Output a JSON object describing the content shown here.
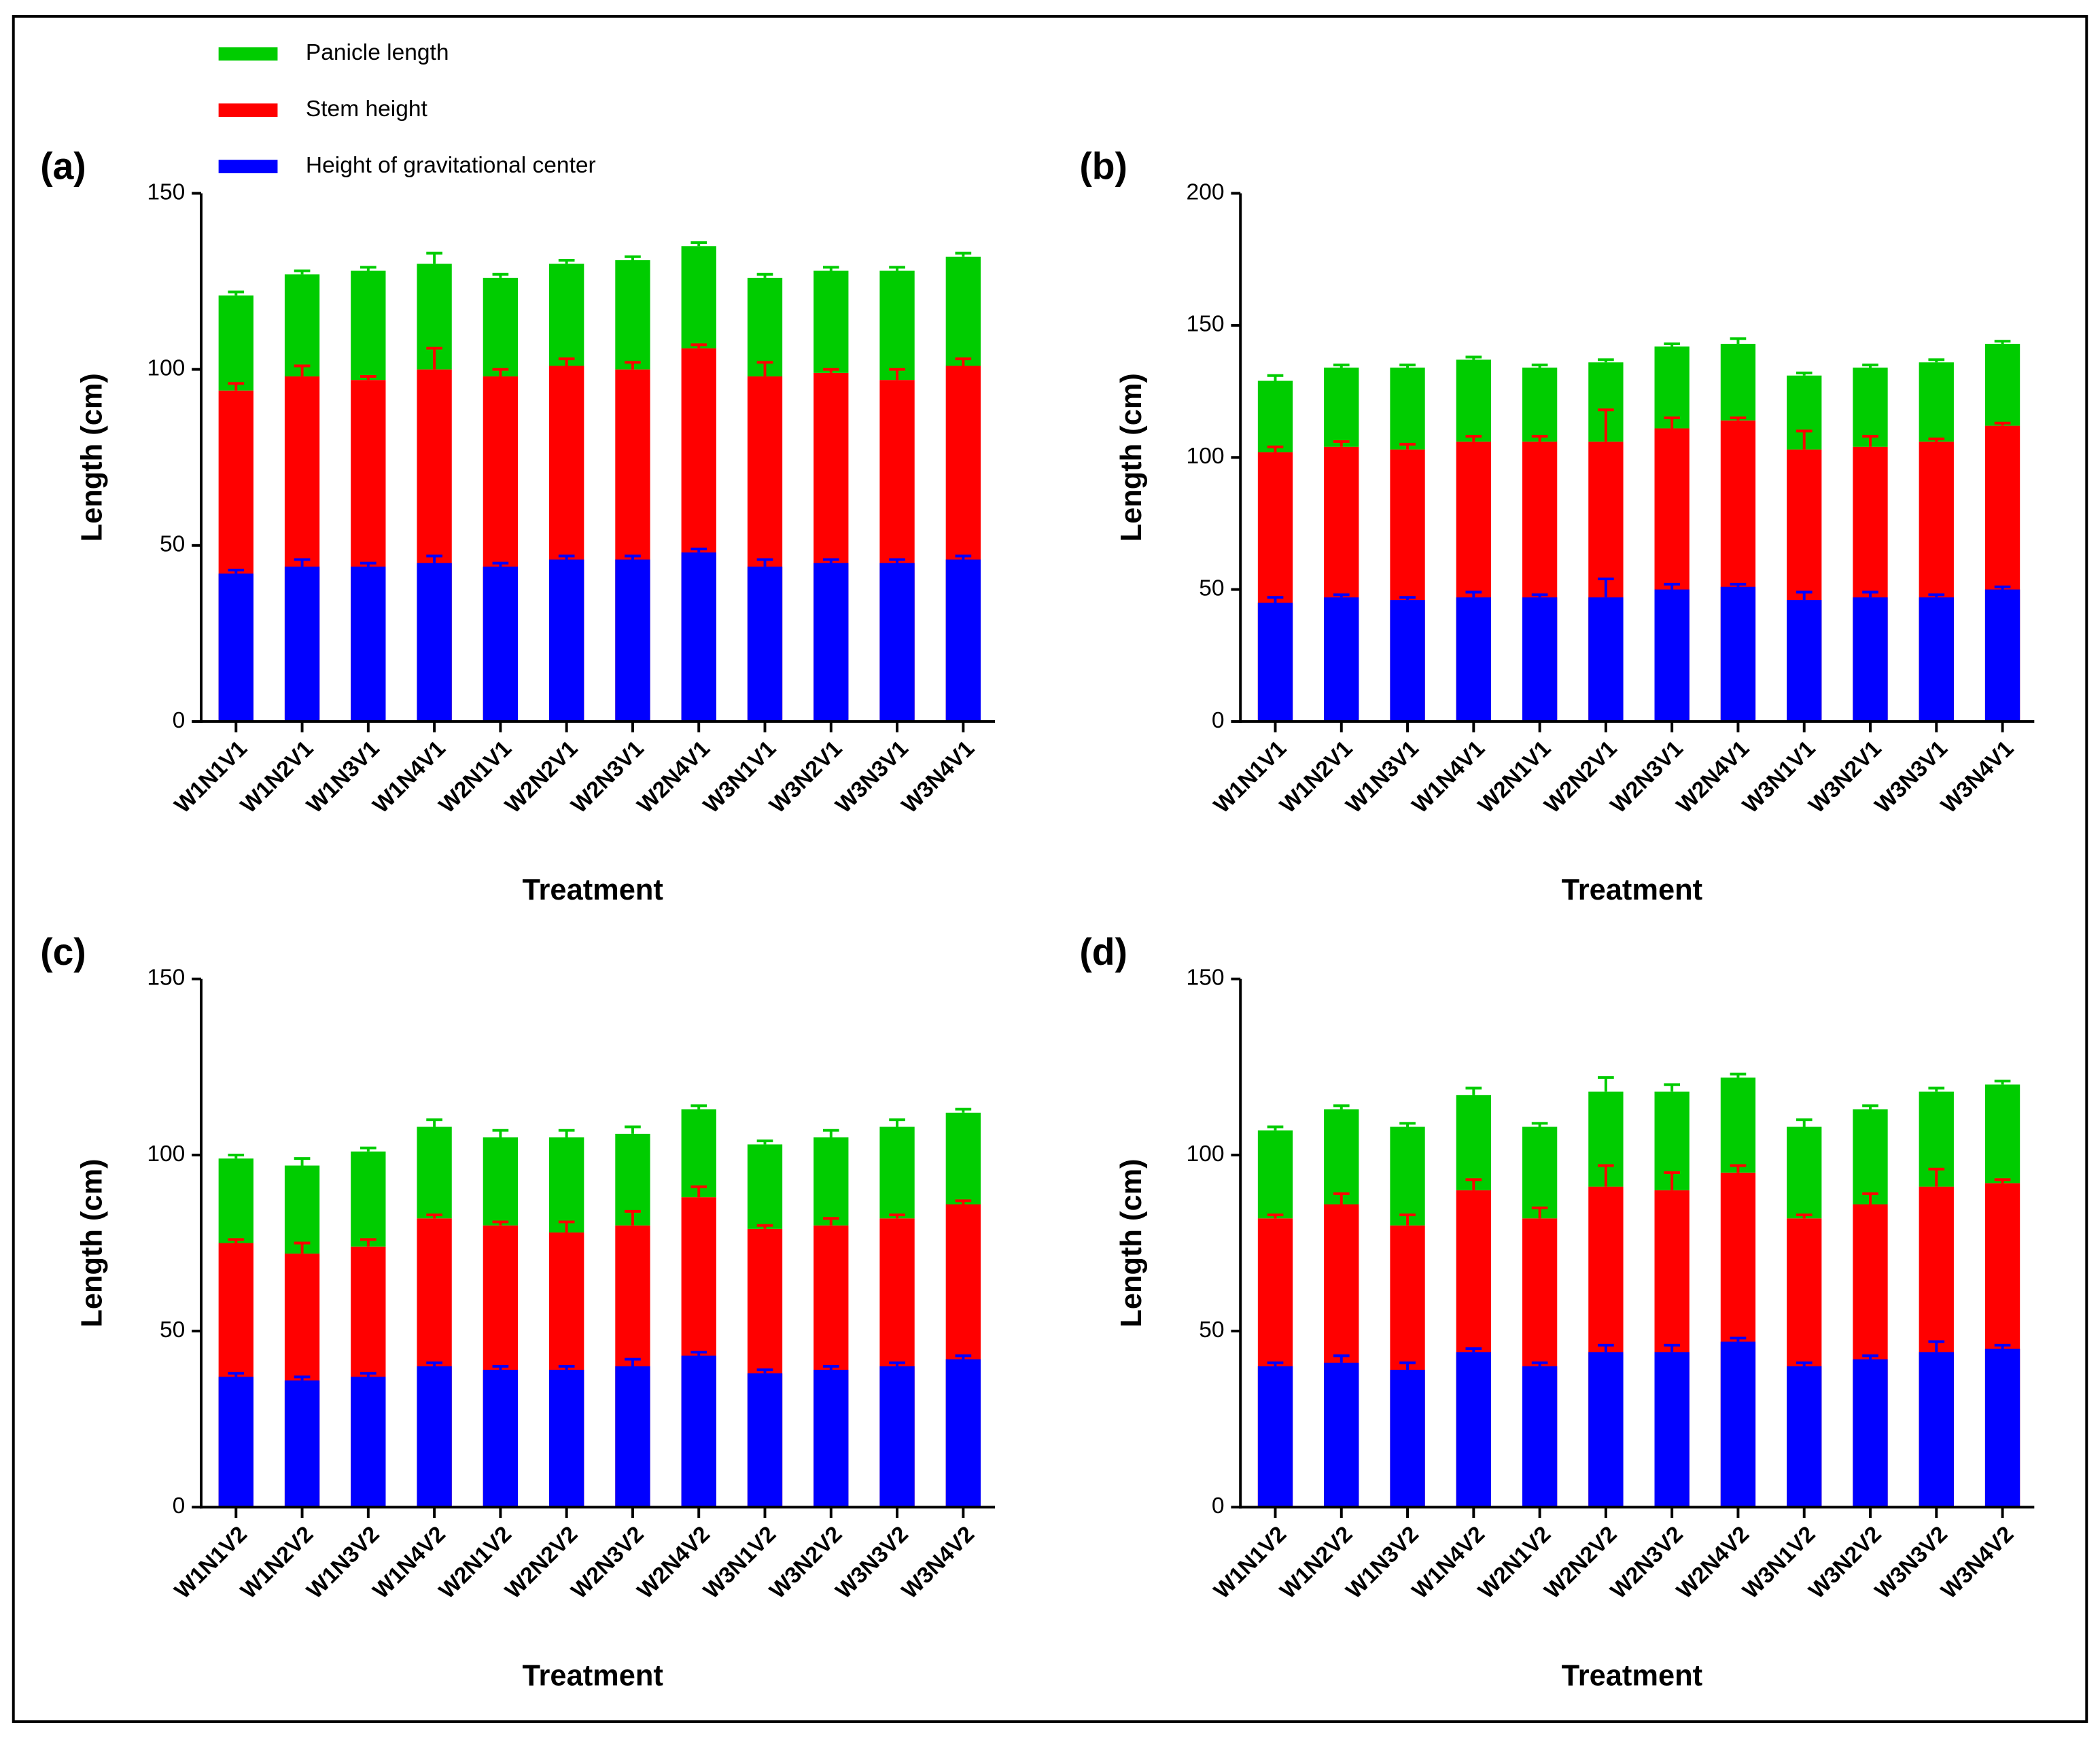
{
  "chart_data": [
    {
      "type": "bar",
      "label": "(a)",
      "ylabel": "Length (cm)",
      "xlabel": "Treatment",
      "categories": [
        "W1N1V1",
        "W1N2V1",
        "W1N3V1",
        "W1N4V1",
        "W2N1V1",
        "W2N2V1",
        "W2N3V1",
        "W2N4V1",
        "W3N1V1",
        "W3N2V1",
        "W3N3V1",
        "W3N4V1"
      ],
      "ylim": [
        0,
        150
      ],
      "yticks": [
        0,
        50,
        100,
        150
      ],
      "series": [
        {
          "name": "Height of gravitational center",
          "color": "#0000ff",
          "values": [
            42,
            44,
            44,
            45,
            44,
            46,
            46,
            48,
            44,
            45,
            45,
            46
          ],
          "errors": [
            1,
            2,
            1,
            2,
            1,
            1,
            1,
            1,
            2,
            1,
            1,
            1
          ]
        },
        {
          "name": "Stem height",
          "color": "#ff0000",
          "values": [
            94,
            98,
            97,
            100,
            98,
            101,
            100,
            106,
            98,
            99,
            97,
            101
          ],
          "errors": [
            2,
            3,
            1,
            6,
            2,
            2,
            2,
            1,
            4,
            1,
            3,
            2
          ]
        },
        {
          "name": "Panicle length",
          "color": "#00cc00",
          "values": [
            27,
            29,
            31,
            30,
            28,
            29,
            31,
            29,
            28,
            29,
            31,
            31
          ],
          "errors": [
            1,
            1,
            1,
            3,
            1,
            1,
            1,
            1,
            1,
            1,
            1,
            1
          ]
        }
      ]
    },
    {
      "type": "bar",
      "label": "(b)",
      "ylabel": "Length (cm)",
      "xlabel": "Treatment",
      "categories": [
        "W1N1V1",
        "W1N2V1",
        "W1N3V1",
        "W1N4V1",
        "W2N1V1",
        "W2N2V1",
        "W2N3V1",
        "W2N4V1",
        "W3N1V1",
        "W3N2V1",
        "W3N3V1",
        "W3N4V1"
      ],
      "ylim": [
        0,
        200
      ],
      "yticks": [
        0,
        50,
        100,
        150,
        200
      ],
      "series": [
        {
          "color": "#0000ff",
          "values": [
            45,
            47,
            46,
            47,
            47,
            47,
            50,
            51,
            46,
            47,
            47,
            50
          ],
          "errors": [
            2,
            1,
            1,
            2,
            1,
            7,
            2,
            1,
            3,
            2,
            1,
            1
          ]
        },
        {
          "color": "#ff0000",
          "values": [
            102,
            104,
            103,
            106,
            106,
            106,
            111,
            114,
            103,
            104,
            106,
            112
          ],
          "errors": [
            2,
            2,
            2,
            2,
            2,
            12,
            4,
            1,
            7,
            4,
            1,
            1
          ]
        },
        {
          "color": "#00cc00",
          "values": [
            27,
            30,
            31,
            31,
            28,
            30,
            31,
            29,
            28,
            30,
            30,
            31
          ],
          "errors": [
            2,
            1,
            1,
            1,
            1,
            1,
            1,
            2,
            1,
            1,
            1,
            1
          ]
        }
      ]
    },
    {
      "type": "bar",
      "label": "(c)",
      "ylabel": "Length (cm)",
      "xlabel": "Treatment",
      "categories": [
        "W1N1V2",
        "W1N2V2",
        "W1N3V2",
        "W1N4V2",
        "W2N1V2",
        "W2N2V2",
        "W2N3V2",
        "W2N4V2",
        "W3N1V2",
        "W3N2V2",
        "W3N3V2",
        "W3N4V2"
      ],
      "ylim": [
        0,
        150
      ],
      "yticks": [
        0,
        50,
        100,
        150
      ],
      "series": [
        {
          "color": "#0000ff",
          "values": [
            37,
            36,
            37,
            40,
            39,
            39,
            40,
            43,
            38,
            39,
            40,
            42
          ],
          "errors": [
            1,
            1,
            1,
            1,
            1,
            1,
            2,
            1,
            1,
            1,
            1,
            1
          ]
        },
        {
          "color": "#ff0000",
          "values": [
            75,
            72,
            74,
            82,
            80,
            78,
            80,
            88,
            79,
            80,
            82,
            86
          ],
          "errors": [
            1,
            3,
            2,
            1,
            1,
            3,
            4,
            3,
            1,
            2,
            1,
            1
          ]
        },
        {
          "color": "#00cc00",
          "values": [
            24,
            25,
            27,
            26,
            25,
            27,
            26,
            25,
            24,
            25,
            26,
            26
          ],
          "errors": [
            1,
            2,
            1,
            2,
            2,
            2,
            2,
            1,
            1,
            2,
            2,
            1
          ]
        }
      ]
    },
    {
      "type": "bar",
      "label": "(d)",
      "ylabel": "Length (cm)",
      "xlabel": "Treatment",
      "categories": [
        "W1N1V2",
        "W1N2V2",
        "W1N3V2",
        "W1N4V2",
        "W2N1V2",
        "W2N2V2",
        "W2N3V2",
        "W2N4V2",
        "W3N1V2",
        "W3N2V2",
        "W3N3V2",
        "W3N4V2"
      ],
      "ylim": [
        0,
        150
      ],
      "yticks": [
        0,
        50,
        100,
        150
      ],
      "series": [
        {
          "color": "#0000ff",
          "values": [
            40,
            41,
            39,
            44,
            40,
            44,
            44,
            47,
            40,
            42,
            44,
            45
          ],
          "errors": [
            1,
            2,
            2,
            1,
            1,
            2,
            2,
            1,
            1,
            1,
            3,
            1
          ]
        },
        {
          "color": "#ff0000",
          "values": [
            82,
            86,
            80,
            90,
            82,
            91,
            90,
            95,
            82,
            86,
            91,
            92
          ],
          "errors": [
            1,
            3,
            3,
            3,
            3,
            6,
            5,
            2,
            1,
            3,
            5,
            1
          ]
        },
        {
          "color": "#00cc00",
          "values": [
            25,
            27,
            28,
            27,
            26,
            27,
            28,
            27,
            26,
            27,
            27,
            28
          ],
          "errors": [
            1,
            1,
            1,
            2,
            1,
            4,
            2,
            1,
            2,
            1,
            1,
            1
          ]
        }
      ]
    }
  ]
}
